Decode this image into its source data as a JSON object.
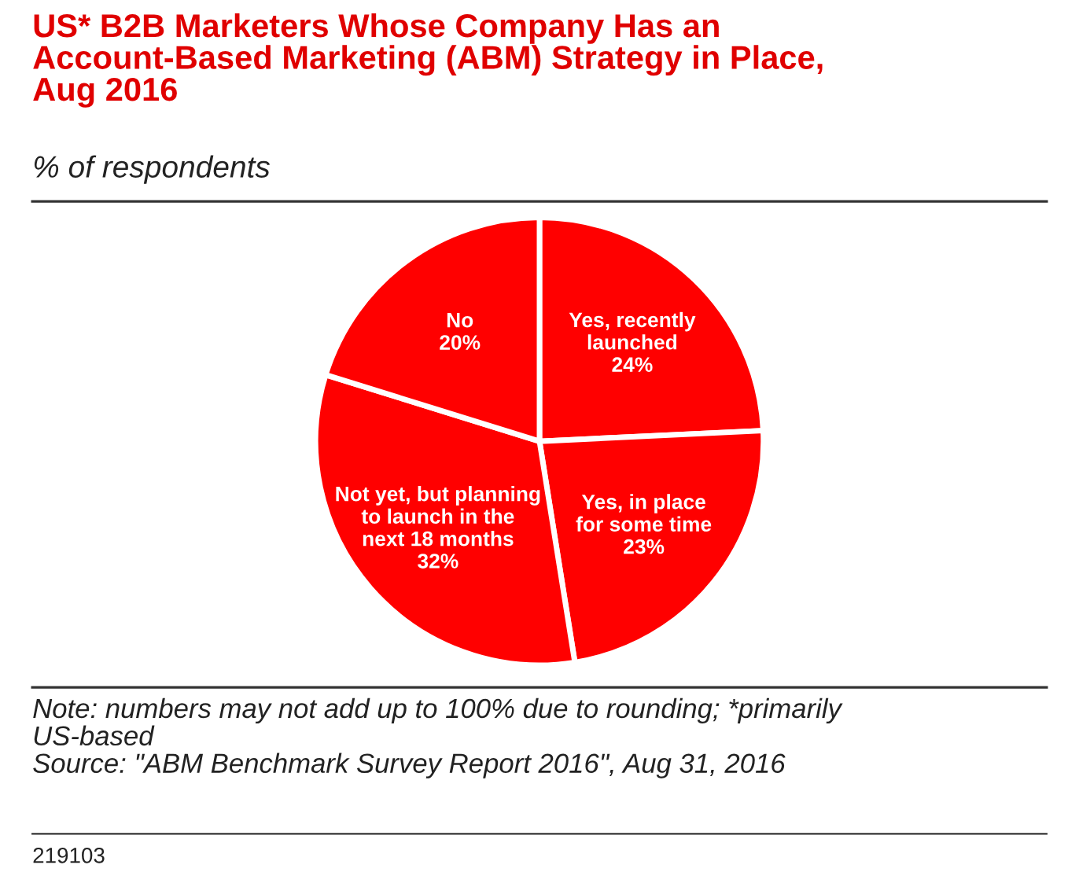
{
  "chart_data": {
    "type": "pie",
    "title": "US* B2B Marketers Whose Company Has an\nAccount-Based Marketing (ABM) Strategy in Place,\nAug 2016",
    "subtitle": "% of respondents",
    "categories": [
      "Yes, recently\nlaunched",
      "Yes, in place\nfor some time",
      "Not yet, but planning\nto launch in the\nnext 18 months",
      "No"
    ],
    "values": [
      24,
      23,
      32,
      20
    ],
    "value_labels": [
      "24%",
      "23%",
      "32%",
      "20%"
    ],
    "colors": [
      "#ff0000",
      "#ff0000",
      "#ff0000",
      "#ff0000"
    ],
    "annotations": [
      "Note: numbers may not add up to 100% due to rounding; *primarily\nUS-based\nSource: \"ABM Benchmark Survey Report 2016\", Aug 31, 2016",
      "219103"
    ]
  }
}
